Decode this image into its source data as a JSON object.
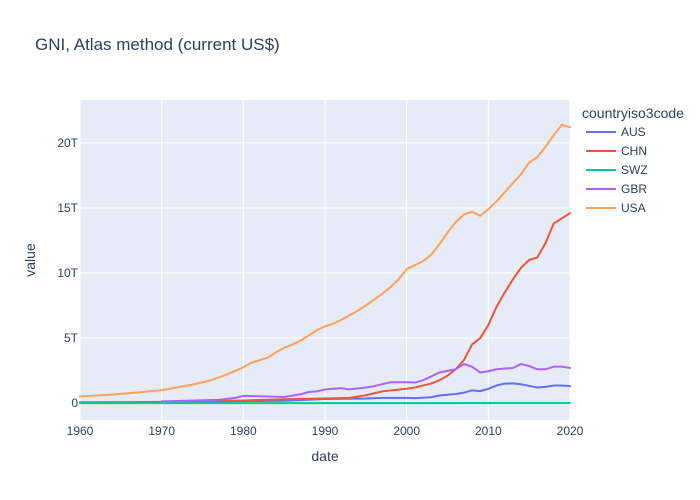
{
  "chart_data": {
    "type": "line",
    "title": "GNI, Atlas method (current US$)",
    "xlabel": "date",
    "ylabel": "value",
    "xlim": [
      1960,
      2020
    ],
    "ylim": [
      -1.3,
      23.3
    ],
    "y_unit_suffix": "T",
    "x_ticks": [
      1960,
      1970,
      1980,
      1990,
      2000,
      2010,
      2020
    ],
    "y_ticks": [
      0,
      5,
      10,
      15,
      20
    ],
    "y_tick_labels": [
      "0",
      "5T",
      "10T",
      "15T",
      "20T"
    ],
    "grid": true,
    "plot_background": "#e5ecf6",
    "legend": {
      "title": "countryiso3code",
      "placement": "right"
    },
    "series": [
      {
        "name": "AUS",
        "color": "#636efa",
        "points": [
          [
            1960,
            0.017
          ],
          [
            1965,
            0.024
          ],
          [
            1970,
            0.04
          ],
          [
            1975,
            0.09
          ],
          [
            1980,
            0.15
          ],
          [
            1985,
            0.18
          ],
          [
            1990,
            0.31
          ],
          [
            1995,
            0.35
          ],
          [
            1997,
            0.4
          ],
          [
            2000,
            0.4
          ],
          [
            2001,
            0.38
          ],
          [
            2003,
            0.45
          ],
          [
            2004,
            0.58
          ],
          [
            2006,
            0.7
          ],
          [
            2007,
            0.8
          ],
          [
            2008,
            0.98
          ],
          [
            2009,
            0.92
          ],
          [
            2010,
            1.1
          ],
          [
            2011,
            1.35
          ],
          [
            2012,
            1.5
          ],
          [
            2013,
            1.52
          ],
          [
            2014,
            1.45
          ],
          [
            2015,
            1.32
          ],
          [
            2016,
            1.2
          ],
          [
            2017,
            1.25
          ],
          [
            2018,
            1.35
          ],
          [
            2019,
            1.35
          ],
          [
            2020,
            1.3
          ]
        ]
      },
      {
        "name": "CHN",
        "color": "#ef553b",
        "points": [
          [
            1960,
            0.06
          ],
          [
            1965,
            0.07
          ],
          [
            1970,
            0.09
          ],
          [
            1975,
            0.14
          ],
          [
            1980,
            0.2
          ],
          [
            1985,
            0.3
          ],
          [
            1990,
            0.35
          ],
          [
            1993,
            0.4
          ],
          [
            1995,
            0.6
          ],
          [
            1997,
            0.9
          ],
          [
            2000,
            1.1
          ],
          [
            2001,
            1.2
          ],
          [
            2003,
            1.5
          ],
          [
            2004,
            1.75
          ],
          [
            2005,
            2.1
          ],
          [
            2006,
            2.6
          ],
          [
            2007,
            3.3
          ],
          [
            2008,
            4.5
          ],
          [
            2009,
            5.0
          ],
          [
            2010,
            6.0
          ],
          [
            2011,
            7.4
          ],
          [
            2012,
            8.5
          ],
          [
            2013,
            9.5
          ],
          [
            2014,
            10.4
          ],
          [
            2015,
            11.0
          ],
          [
            2016,
            11.2
          ],
          [
            2017,
            12.3
          ],
          [
            2018,
            13.8
          ],
          [
            2019,
            14.2
          ],
          [
            2020,
            14.6
          ]
        ]
      },
      {
        "name": "SWZ",
        "color": "#00cc96",
        "points": [
          [
            1960,
            0.0001
          ],
          [
            1980,
            0.0006
          ],
          [
            2000,
            0.0015
          ],
          [
            2010,
            0.004
          ],
          [
            2020,
            0.004
          ]
        ]
      },
      {
        "name": "GBR",
        "color": "#ab63fa",
        "points": [
          [
            1970,
            0.13
          ],
          [
            1972,
            0.16
          ],
          [
            1975,
            0.22
          ],
          [
            1977,
            0.25
          ],
          [
            1979,
            0.4
          ],
          [
            1980,
            0.55
          ],
          [
            1982,
            0.53
          ],
          [
            1985,
            0.47
          ],
          [
            1987,
            0.68
          ],
          [
            1988,
            0.85
          ],
          [
            1989,
            0.9
          ],
          [
            1990,
            1.05
          ],
          [
            1992,
            1.15
          ],
          [
            1993,
            1.05
          ],
          [
            1995,
            1.2
          ],
          [
            1996,
            1.3
          ],
          [
            1997,
            1.45
          ],
          [
            1998,
            1.6
          ],
          [
            2000,
            1.6
          ],
          [
            2001,
            1.58
          ],
          [
            2002,
            1.75
          ],
          [
            2003,
            2.05
          ],
          [
            2004,
            2.35
          ],
          [
            2006,
            2.6
          ],
          [
            2007,
            3.0
          ],
          [
            2008,
            2.8
          ],
          [
            2009,
            2.35
          ],
          [
            2010,
            2.45
          ],
          [
            2011,
            2.6
          ],
          [
            2012,
            2.65
          ],
          [
            2013,
            2.7
          ],
          [
            2014,
            3.0
          ],
          [
            2015,
            2.85
          ],
          [
            2016,
            2.6
          ],
          [
            2017,
            2.6
          ],
          [
            2018,
            2.8
          ],
          [
            2019,
            2.8
          ],
          [
            2020,
            2.7
          ]
        ]
      },
      {
        "name": "USA",
        "color": "#ffa15a",
        "points": [
          [
            1960,
            0.52
          ],
          [
            1962,
            0.58
          ],
          [
            1964,
            0.65
          ],
          [
            1966,
            0.76
          ],
          [
            1968,
            0.87
          ],
          [
            1970,
            1.0
          ],
          [
            1972,
            1.22
          ],
          [
            1974,
            1.45
          ],
          [
            1976,
            1.75
          ],
          [
            1978,
            2.2
          ],
          [
            1980,
            2.75
          ],
          [
            1981,
            3.1
          ],
          [
            1983,
            3.5
          ],
          [
            1984,
            3.9
          ],
          [
            1985,
            4.25
          ],
          [
            1986,
            4.5
          ],
          [
            1987,
            4.8
          ],
          [
            1988,
            5.2
          ],
          [
            1989,
            5.6
          ],
          [
            1990,
            5.9
          ],
          [
            1991,
            6.1
          ],
          [
            1992,
            6.4
          ],
          [
            1993,
            6.75
          ],
          [
            1994,
            7.1
          ],
          [
            1995,
            7.5
          ],
          [
            1996,
            7.95
          ],
          [
            1997,
            8.4
          ],
          [
            1998,
            8.9
          ],
          [
            1999,
            9.5
          ],
          [
            2000,
            10.3
          ],
          [
            2001,
            10.6
          ],
          [
            2002,
            10.9
          ],
          [
            2003,
            11.4
          ],
          [
            2004,
            12.2
          ],
          [
            2005,
            13.1
          ],
          [
            2006,
            13.9
          ],
          [
            2007,
            14.5
          ],
          [
            2008,
            14.7
          ],
          [
            2009,
            14.4
          ],
          [
            2010,
            14.9
          ],
          [
            2011,
            15.5
          ],
          [
            2012,
            16.2
          ],
          [
            2013,
            16.9
          ],
          [
            2014,
            17.6
          ],
          [
            2015,
            18.5
          ],
          [
            2016,
            18.9
          ],
          [
            2017,
            19.7
          ],
          [
            2018,
            20.6
          ],
          [
            2019,
            21.4
          ],
          [
            2020,
            21.2
          ]
        ]
      }
    ]
  }
}
